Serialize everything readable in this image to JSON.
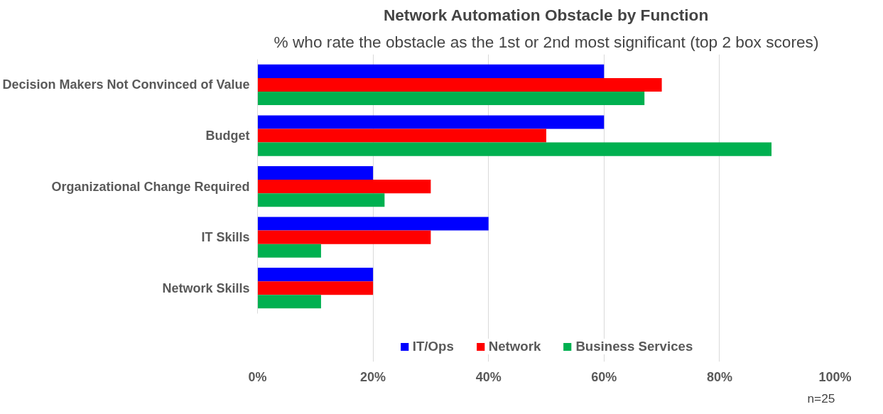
{
  "chart_data": {
    "type": "bar",
    "orientation": "horizontal",
    "title": "Network Automation Obstacle by Function",
    "subtitle": "% who rate the obstacle as the 1st or 2nd most significant (top 2 box scores)",
    "categories": [
      "Decision Makers Not Convinced of Value",
      "Budget",
      "Organizational Change Required",
      "IT Skills",
      "Network Skills"
    ],
    "series": [
      {
        "name": "IT/Ops",
        "color": "#0000ff",
        "values": [
          60,
          60,
          20,
          40,
          20
        ]
      },
      {
        "name": "Network",
        "color": "#ff0000",
        "values": [
          70,
          50,
          30,
          30,
          20
        ]
      },
      {
        "name": "Business Services",
        "color": "#00b050",
        "values": [
          67,
          89,
          22,
          11,
          11
        ]
      }
    ],
    "xlim": [
      0,
      100
    ],
    "xticks": [
      {
        "value": 0,
        "label": "0%"
      },
      {
        "value": 20,
        "label": "20%"
      },
      {
        "value": 40,
        "label": "40%"
      },
      {
        "value": 60,
        "label": "60%"
      },
      {
        "value": 80,
        "label": "80%"
      },
      {
        "value": 100,
        "label": "100%"
      }
    ],
    "grid": "x",
    "legend": "bottom",
    "annotations": [
      "n=25"
    ]
  }
}
